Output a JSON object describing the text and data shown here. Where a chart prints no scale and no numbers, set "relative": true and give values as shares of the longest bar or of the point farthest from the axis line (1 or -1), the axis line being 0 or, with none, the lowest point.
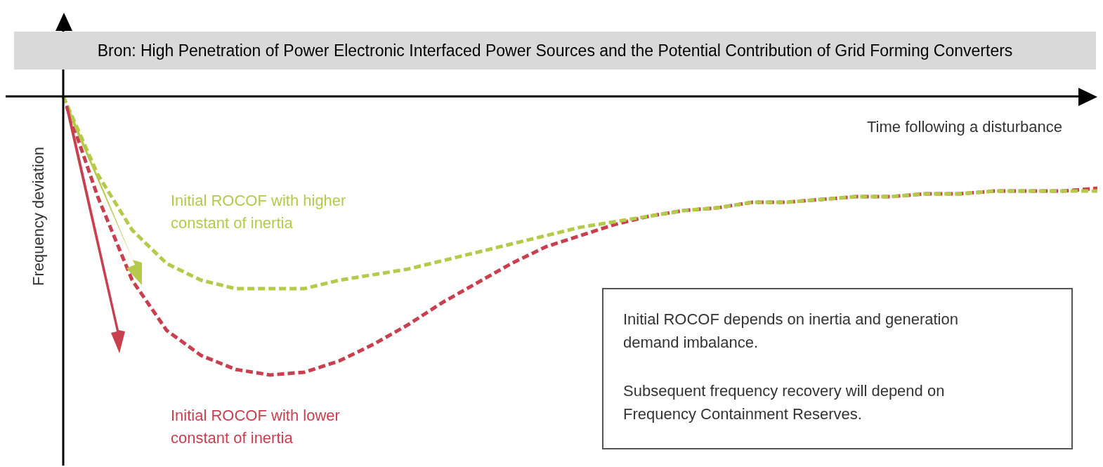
{
  "chart_data": {
    "type": "line",
    "relative": true,
    "line_style": "dashed",
    "marker": "none",
    "title": "Bron: High Penetration of Power Electronic Interfaced Power Sources and the Potential Contribution of Grid Forming Converters",
    "xlabel": "Time following a disturbance",
    "ylabel": "Frequency deviation",
    "categories": [
      null,
      null,
      null,
      null,
      null,
      null,
      null,
      null,
      null,
      null,
      null,
      null,
      null,
      null,
      null,
      null,
      null,
      null,
      null,
      null,
      null,
      null,
      null,
      null,
      null,
      null,
      null,
      null,
      null,
      null,
      null
    ],
    "series": [
      {
        "name": "Initial ROCOF with higher constant of inertia",
        "color": "#b5c94a",
        "values": [
          0,
          -0.28,
          -0.48,
          -0.6,
          -0.66,
          -0.69,
          -0.69,
          -0.69,
          -0.66,
          -0.64,
          -0.62,
          -0.59,
          -0.56,
          -0.53,
          -0.5,
          -0.47,
          -0.45,
          -0.43,
          -0.41,
          -0.4,
          -0.38,
          -0.38,
          -0.37,
          -0.36,
          -0.36,
          -0.35,
          -0.35,
          -0.34,
          -0.34,
          -0.34,
          -0.34
        ]
      },
      {
        "name": "Initial ROCOF with lower constant of inertia",
        "color": "#c8404f",
        "values": [
          0,
          -0.36,
          -0.66,
          -0.84,
          -0.93,
          -0.98,
          -1,
          -0.99,
          -0.95,
          -0.89,
          -0.82,
          -0.74,
          -0.67,
          -0.6,
          -0.54,
          -0.5,
          -0.46,
          -0.43,
          -0.41,
          -0.4,
          -0.38,
          -0.38,
          -0.37,
          -0.36,
          -0.36,
          -0.35,
          -0.35,
          -0.34,
          -0.34,
          -0.34,
          -0.33
        ]
      }
    ],
    "annotations": [
      "Initial ROCOF depends on inertia and generation demand imbalance.",
      "Subsequent frequency recovery will depend on Frequency Containment Reserves."
    ]
  }
}
